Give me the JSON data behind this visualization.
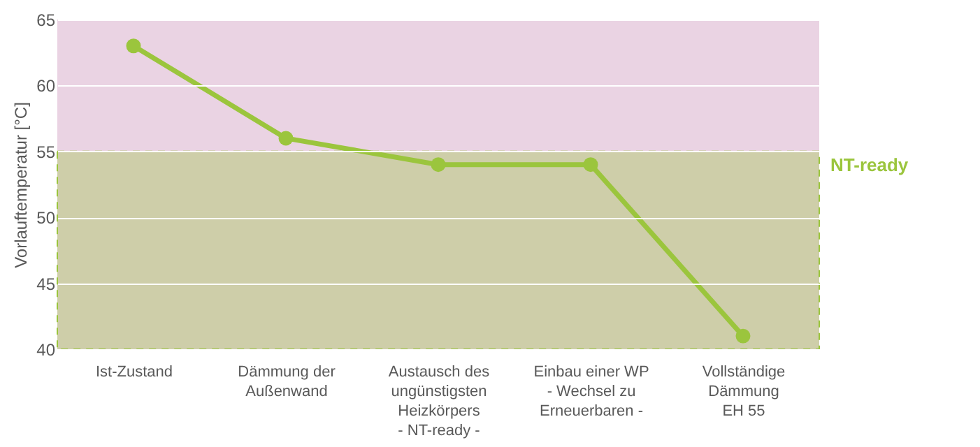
{
  "chart_data": {
    "type": "line",
    "ylabel": "Vorlauftemperatur [°C]",
    "categories": [
      "Ist-Zustand",
      "Dämmung der\nAußenwand",
      "Austausch des\nungünstigsten\nHeizkörpers\n- NT-ready -",
      "Einbau einer WP\n- Wechsel zu\nErneuerbaren -",
      "Vollständige\nDämmung\nEH 55"
    ],
    "series": [
      {
        "color": "#9bc53d",
        "values": [
          63,
          56,
          54,
          54,
          41
        ]
      }
    ],
    "ylim": [
      40,
      65
    ],
    "yticks": [
      40,
      45,
      50,
      55,
      60,
      65
    ],
    "grid": "y",
    "marker": "circle",
    "line_style": "solid",
    "bands": [
      {
        "axis": "y",
        "from": 40,
        "to": 65,
        "color": "#ead3e3"
      },
      {
        "axis": "y",
        "from": 40,
        "to": 55,
        "label": "NT-ready",
        "color": "#9bc53d"
      }
    ]
  }
}
